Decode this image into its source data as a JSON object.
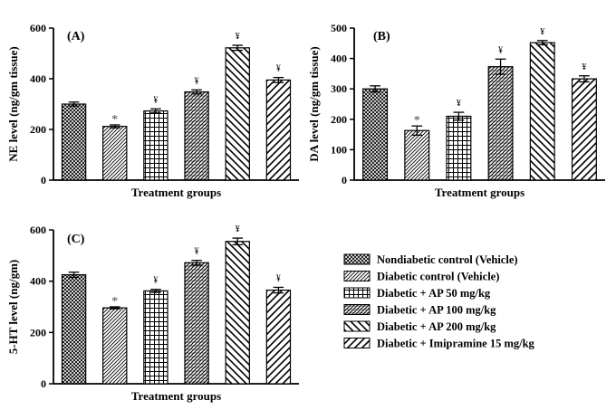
{
  "chart_data": [
    {
      "type": "bar",
      "panel_label": "(A)",
      "ylabel": "NE level (ng/gm tissue)",
      "xlabel": "Treatment groups",
      "ylim": [
        0,
        600
      ],
      "yticks": [
        0,
        200,
        400,
        600
      ],
      "categories": [
        "Nondiabetic control  (Vehicle)",
        "Diabetic control  (Vehicle)",
        "Diabetic + AP 50 mg/kg",
        "Diabetic + AP 100 mg/kg",
        "Diabetic + AP 200 mg/kg",
        "Diabetic + Imipramine 15 mg/kg"
      ],
      "values": [
        300,
        212,
        273,
        348,
        522,
        395
      ],
      "errors": [
        8,
        6,
        8,
        8,
        10,
        10
      ],
      "marks": [
        "",
        "*",
        "¥",
        "¥",
        "¥",
        "¥"
      ]
    },
    {
      "type": "bar",
      "panel_label": "(B)",
      "ylabel": "DA level (ng/gm tissue)",
      "xlabel": "Treatment groups",
      "ylim": [
        0,
        500
      ],
      "yticks": [
        0,
        100,
        200,
        300,
        400,
        500
      ],
      "categories": [
        "Nondiabetic control  (Vehicle)",
        "Diabetic control  (Vehicle)",
        "Diabetic + AP 50 mg/kg",
        "Diabetic + AP 100 mg/kg",
        "Diabetic + AP 200 mg/kg",
        "Diabetic + Imipramine 15 mg/kg"
      ],
      "values": [
        300,
        163,
        210,
        373,
        452,
        333
      ],
      "errors": [
        10,
        15,
        13,
        25,
        7,
        10
      ],
      "marks": [
        "",
        "*",
        "¥",
        "¥",
        "¥",
        "¥"
      ]
    },
    {
      "type": "bar",
      "panel_label": "(C)",
      "ylabel": "5-HT level (ng/gm)",
      "xlabel": "Treatment groups",
      "ylim": [
        0,
        600
      ],
      "yticks": [
        0,
        200,
        400,
        600
      ],
      "categories": [
        "Nondiabetic control  (Vehicle)",
        "Diabetic control  (Vehicle)",
        "Diabetic + AP 50 mg/kg",
        "Diabetic + AP 100 mg/kg",
        "Diabetic + AP 200 mg/kg",
        "Diabetic + Imipramine 15 mg/kg"
      ],
      "values": [
        425,
        296,
        362,
        472,
        555,
        365
      ],
      "errors": [
        10,
        4,
        6,
        9,
        13,
        11
      ],
      "marks": [
        "",
        "*",
        "¥",
        "¥",
        "¥",
        "¥"
      ]
    }
  ],
  "legend": [
    "Nondiabetic control  (Vehicle)",
    "Diabetic control  (Vehicle)",
    "Diabetic + AP 50 mg/kg",
    "Diabetic + AP 100 mg/kg",
    "Diabetic + AP 200 mg/kg",
    "Diabetic + Imipramine 15 mg/kg"
  ]
}
